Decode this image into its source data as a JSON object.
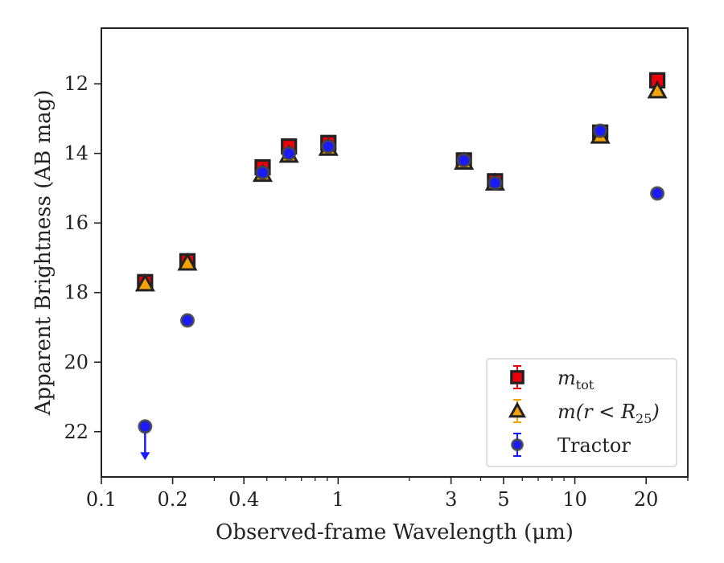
{
  "chart_data": {
    "type": "scatter",
    "title": "",
    "xlabel": "Observed-frame Wavelength (μm)",
    "ylabel": "Apparent Brightness (AB mag)",
    "x_scale": "log",
    "xlim": [
      0.1,
      30
    ],
    "ylim": [
      23.3,
      10.4
    ],
    "y_inverted": true,
    "xticks": [
      {
        "value": 0.1,
        "label": "0.1"
      },
      {
        "value": 0.2,
        "label": "0.2"
      },
      {
        "value": 0.4,
        "label": "0.4"
      },
      {
        "value": 1,
        "label": "1"
      },
      {
        "value": 3,
        "label": "3"
      },
      {
        "value": 5,
        "label": "5"
      },
      {
        "value": 10,
        "label": "10"
      },
      {
        "value": 20,
        "label": "20"
      }
    ],
    "yticks": [
      {
        "value": 12,
        "label": "12"
      },
      {
        "value": 14,
        "label": "14"
      },
      {
        "value": 16,
        "label": "16"
      },
      {
        "value": 18,
        "label": "18"
      },
      {
        "value": 20,
        "label": "20"
      },
      {
        "value": 22,
        "label": "22"
      }
    ],
    "legend_position": "lower-right",
    "series": [
      {
        "name": "m_tot",
        "legend_main": "m",
        "legend_sub": "tot",
        "marker": "square",
        "color": "#e8000b",
        "edge_color": "#222222",
        "x": [
          0.153,
          0.231,
          0.48,
          0.62,
          0.91,
          3.4,
          4.6,
          12.8,
          22.3
        ],
        "y": [
          17.7,
          17.1,
          14.4,
          13.8,
          13.7,
          14.2,
          14.8,
          13.4,
          11.9
        ],
        "upper_limit": [
          false,
          false,
          false,
          false,
          false,
          false,
          false,
          false,
          false
        ]
      },
      {
        "name": "m(r < R_25)",
        "legend_main": "m(r < R",
        "legend_sub": "25",
        "legend_tail": ")",
        "marker": "triangle",
        "color": "#f5a300",
        "edge_color": "#222222",
        "x": [
          0.153,
          0.231,
          0.48,
          0.62,
          0.91,
          3.4,
          4.6,
          12.8,
          22.3
        ],
        "y": [
          17.75,
          17.15,
          14.6,
          14.05,
          13.85,
          14.25,
          14.85,
          13.5,
          12.2
        ],
        "upper_limit": [
          false,
          false,
          false,
          false,
          false,
          false,
          false,
          false,
          false
        ]
      },
      {
        "name": "Tractor",
        "legend_main": "Tractor",
        "marker": "circle",
        "color": "#1a1aff",
        "edge_color": "#444444",
        "x": [
          0.153,
          0.231,
          0.48,
          0.62,
          0.91,
          3.4,
          4.6,
          12.8,
          22.3
        ],
        "y": [
          21.85,
          18.8,
          14.55,
          14.0,
          13.8,
          14.2,
          14.85,
          13.35,
          15.15
        ],
        "upper_limit": [
          true,
          false,
          false,
          false,
          false,
          false,
          false,
          false,
          false
        ]
      }
    ]
  }
}
